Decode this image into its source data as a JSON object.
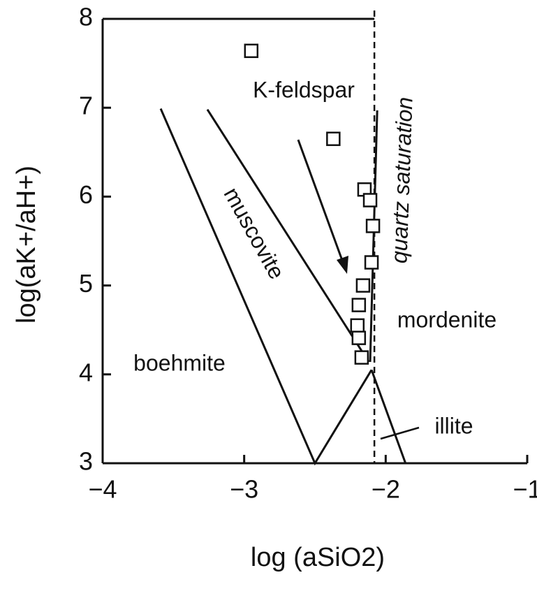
{
  "chart_data": {
    "type": "scatter",
    "xlabel": "log (aSiO2)",
    "ylabel": "log(aK+/aH+)",
    "xlim": [
      -4,
      -1
    ],
    "ylim": [
      3,
      8
    ],
    "xticks": [
      {
        "value": -4,
        "label": "−4"
      },
      {
        "value": -3,
        "label": "−3"
      },
      {
        "value": -2,
        "label": "−2"
      },
      {
        "value": -1,
        "label": "−1"
      }
    ],
    "yticks": [
      3,
      4,
      5,
      6,
      7,
      8
    ],
    "x": [
      -2.95,
      -2.37,
      -2.15,
      -2.11,
      -2.09,
      -2.1,
      -2.16,
      -2.19,
      -2.2,
      -2.19,
      -2.17
    ],
    "values": [
      7.64,
      6.65,
      6.08,
      5.96,
      5.67,
      5.26,
      5.0,
      4.78,
      4.55,
      4.41,
      4.19
    ],
    "boundaries": [
      {
        "x": [
          -3.59,
          -2.5,
          -2.1
        ],
        "y": [
          6.99,
          3,
          4.05
        ]
      },
      {
        "x": [
          -3.26,
          -2.12
        ],
        "y": [
          6.98,
          4.14
        ]
      },
      {
        "x": [
          -2.06,
          -2.11
        ],
        "y": [
          6.97,
          4.14
        ]
      },
      {
        "x": [
          -2.1,
          -1.86
        ],
        "y": [
          4.05,
          3
        ]
      }
    ],
    "quartz_saturation_x": -2.08,
    "fields": [
      "K-feldspar",
      "muscovite",
      "quartz saturation",
      "mordenite",
      "boehmite",
      "illite"
    ]
  }
}
